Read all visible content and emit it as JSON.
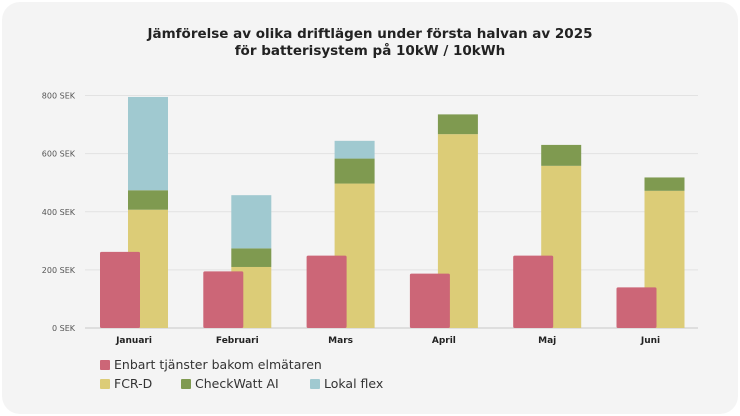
{
  "chart_data": {
    "type": "bar",
    "title": [
      "Jämförelse av olika driftlägen under första halvan av 2025",
      "för batterisystem på 10kW / 10kWh"
    ],
    "categories": [
      "Januari",
      "Februari",
      "Mars",
      "April",
      "Maj",
      "Juni"
    ],
    "ylim": [
      0,
      800
    ],
    "yticks": [
      0,
      200,
      400,
      600,
      800
    ],
    "ytick_labels": [
      "0 SEK",
      "200 SEK",
      "400 SEK",
      "600 SEK",
      "800 SEK"
    ],
    "grid": true,
    "legend_placement": "bottom-left",
    "series": [
      {
        "name": "Enbart tjänster bakom elmätaren",
        "color": "#cc6677",
        "stack": "a",
        "values": [
          262,
          195,
          249,
          187,
          249,
          140
        ]
      },
      {
        "name": "FCR-D",
        "color": "#dccc77",
        "stack": "b",
        "values": [
          407,
          210,
          497,
          667,
          558,
          472
        ]
      },
      {
        "name": "CheckWatt AI",
        "color": "#7f9a50",
        "stack": "b",
        "values": [
          67,
          64,
          86,
          68,
          72,
          46
        ]
      },
      {
        "name": "Lokal flex",
        "color": "#a0c9d0",
        "stack": "b",
        "values": [
          321,
          183,
          61,
          0,
          0,
          0
        ]
      }
    ]
  }
}
